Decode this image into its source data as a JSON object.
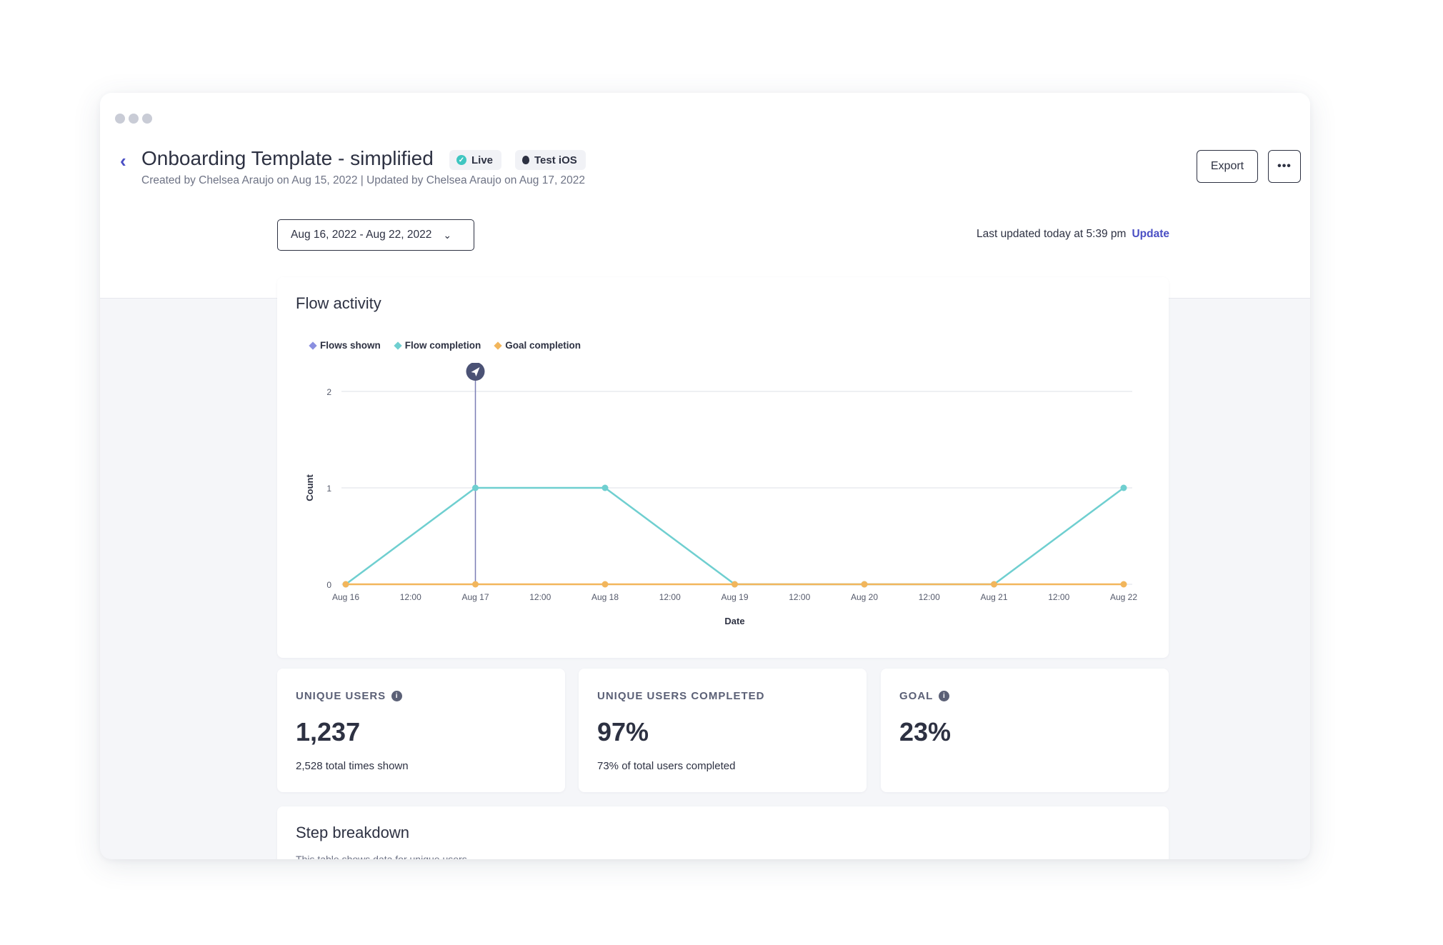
{
  "window": {
    "dots": 3
  },
  "header": {
    "back_icon": "chevron-left-icon",
    "title": "Onboarding Template - simplified",
    "badge_live": "Live",
    "badge_platform": "Test iOS",
    "subtitle": "Created by Chelsea Araujo on Aug 15, 2022 | Updated by Chelsea Araujo on Aug 17, 2022",
    "export_label": "Export",
    "more_label": "•••"
  },
  "toolbar": {
    "date_range": "Aug 16, 2022 - Aug 22, 2022",
    "last_updated": "Last updated today at 5:39 pm",
    "update_label": "Update"
  },
  "flow_activity": {
    "title": "Flow activity",
    "legend": [
      {
        "label": "Flows shown",
        "color": "#8a8fe0"
      },
      {
        "label": "Flow completion",
        "color": "#6fcfd0"
      },
      {
        "label": "Goal completion",
        "color": "#f2b65c"
      }
    ]
  },
  "chart_data": {
    "type": "line",
    "title": "Flow activity",
    "xlabel": "Date",
    "ylabel": "Count",
    "ylim": [
      0,
      2
    ],
    "yticks": [
      "0",
      "1",
      "2"
    ],
    "xticks": [
      "Aug 16",
      "12:00",
      "Aug 17",
      "12:00",
      "Aug 18",
      "12:00",
      "Aug 19",
      "12:00",
      "Aug 20",
      "12:00",
      "Aug 21",
      "12:00",
      "Aug 22"
    ],
    "x": [
      "Aug 16",
      "Aug 17",
      "Aug 18",
      "Aug 19",
      "Aug 20",
      "Aug 21",
      "Aug 22"
    ],
    "series": [
      {
        "name": "Flow completion",
        "color": "#6fcfd0",
        "values": [
          0,
          1,
          1,
          0,
          0,
          0,
          1
        ]
      },
      {
        "name": "Goal completion",
        "color": "#f2b65c",
        "values": [
          0,
          0,
          0,
          0,
          0,
          0,
          0
        ]
      }
    ],
    "marker": {
      "x": "Aug 17",
      "icon": "send-icon"
    },
    "grid": true,
    "legend_position": "top-left"
  },
  "stats": [
    {
      "label": "UNIQUE USERS",
      "info": true,
      "value": "1,237",
      "sub": "2,528 total times shown"
    },
    {
      "label": "UNIQUE USERS COMPLETED",
      "info": false,
      "value": "97%",
      "sub": "73% of total users completed"
    },
    {
      "label": "GOAL",
      "info": true,
      "value": "23%",
      "sub": ""
    }
  ],
  "step_breakdown": {
    "title": "Step breakdown",
    "subtitle": "This table shows data for unique users"
  }
}
